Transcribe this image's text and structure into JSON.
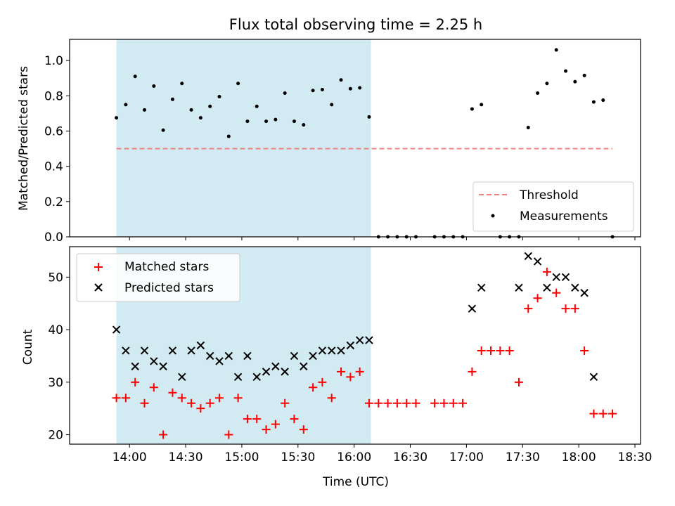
{
  "chart_data": {
    "title": "Flux total observing time = 2.25 h",
    "xlabel": "Time (UTC)",
    "xticks": [
      "14:00",
      "14:30",
      "15:00",
      "15:30",
      "16:00",
      "16:30",
      "17:00",
      "17:30",
      "18:00",
      "18:30"
    ],
    "shaded_span": {
      "start": "13:53",
      "end": "16:09",
      "color": "#add8e6"
    },
    "panels": [
      {
        "type": "scatter",
        "ylabel": "Matched/Predicted stars",
        "ylim": [
          0,
          1.12
        ],
        "yticks": [
          "0.0",
          "0.2",
          "0.4",
          "0.6",
          "0.8",
          "1.0"
        ],
        "threshold": {
          "name": "Threshold",
          "value": 0.5,
          "color": "#f08080"
        },
        "series": [
          {
            "name": "Measurements",
            "color": "#000000",
            "x": [
              "13:53",
              "13:58",
              "14:03",
              "14:08",
              "14:13",
              "14:18",
              "14:23",
              "14:28",
              "14:33",
              "14:38",
              "14:43",
              "14:48",
              "14:53",
              "14:58",
              "15:03",
              "15:08",
              "15:13",
              "15:18",
              "15:23",
              "15:28",
              "15:33",
              "15:38",
              "15:43",
              "15:48",
              "15:53",
              "15:58",
              "16:03",
              "16:08",
              "16:13",
              "16:18",
              "16:23",
              "16:28",
              "16:33",
              "16:43",
              "16:48",
              "16:53",
              "16:58",
              "17:03",
              "17:08",
              "17:18",
              "17:23",
              "17:28",
              "17:33",
              "17:38",
              "17:43",
              "17:48",
              "17:53",
              "17:58",
              "18:03",
              "18:08",
              "18:13",
              "18:18"
            ],
            "y": [
              0.675,
              0.75,
              0.91,
              0.72,
              0.855,
              0.605,
              0.78,
              0.87,
              0.72,
              0.675,
              0.74,
              0.795,
              0.57,
              0.87,
              0.655,
              0.74,
              0.655,
              0.665,
              0.815,
              0.655,
              0.635,
              0.83,
              0.835,
              0.75,
              0.89,
              0.84,
              0.845,
              0.68,
              0,
              0,
              0,
              0,
              0,
              0,
              0,
              0,
              0,
              0.725,
              0.75,
              0,
              0,
              0,
              0.62,
              0.815,
              0.87,
              1.06,
              0.94,
              0.88,
              0.915,
              0.765,
              0.775,
              0
            ]
          }
        ]
      },
      {
        "type": "scatter",
        "ylabel": "Count",
        "ylim": [
          18.2,
          55.8
        ],
        "yticks": [
          "20",
          "30",
          "40",
          "50"
        ],
        "series": [
          {
            "name": "Matched stars",
            "color": "#ff0000",
            "x": [
              "13:53",
              "13:58",
              "14:03",
              "14:08",
              "14:13",
              "14:18",
              "14:23",
              "14:28",
              "14:33",
              "14:38",
              "14:43",
              "14:48",
              "14:53",
              "14:58",
              "15:03",
              "15:08",
              "15:13",
              "15:18",
              "15:23",
              "15:28",
              "15:33",
              "15:38",
              "15:43",
              "15:48",
              "15:53",
              "15:58",
              "16:03",
              "16:08",
              "16:13",
              "16:18",
              "16:23",
              "16:28",
              "16:33",
              "16:43",
              "16:48",
              "16:53",
              "16:58",
              "17:03",
              "17:08",
              "17:13",
              "17:18",
              "17:23",
              "17:28",
              "17:33",
              "17:38",
              "17:43",
              "17:48",
              "17:53",
              "17:58",
              "18:03",
              "18:08",
              "18:13",
              "18:18"
            ],
            "y": [
              27,
              27,
              30,
              26,
              29,
              20,
              28,
              27,
              26,
              25,
              26,
              27,
              20,
              27,
              23,
              23,
              21,
              22,
              26,
              23,
              21,
              29,
              30,
              27,
              32,
              31,
              32,
              26,
              26,
              26,
              26,
              26,
              26,
              26,
              26,
              26,
              26,
              32,
              36,
              36,
              36,
              36,
              30,
              44,
              46,
              51,
              47,
              44,
              44,
              36,
              24,
              24,
              24
            ]
          },
          {
            "name": "Predicted stars",
            "color": "#000000",
            "x": [
              "13:53",
              "13:58",
              "14:03",
              "14:08",
              "14:13",
              "14:18",
              "14:23",
              "14:28",
              "14:33",
              "14:38",
              "14:43",
              "14:48",
              "14:53",
              "14:58",
              "15:03",
              "15:08",
              "15:13",
              "15:18",
              "15:23",
              "15:28",
              "15:33",
              "15:38",
              "15:43",
              "15:48",
              "15:53",
              "15:58",
              "16:03",
              "16:08",
              "17:03",
              "17:08",
              "17:28",
              "17:33",
              "17:38",
              "17:43",
              "17:48",
              "17:53",
              "17:58",
              "18:03",
              "18:08"
            ],
            "y": [
              40,
              36,
              33,
              36,
              34,
              33,
              36,
              31,
              36,
              37,
              35,
              34,
              35,
              31,
              35,
              31,
              32,
              33,
              32,
              35,
              33,
              35,
              36,
              36,
              36,
              37,
              38,
              38,
              44,
              48,
              48,
              54,
              53,
              48,
              50,
              50,
              48,
              47,
              31
            ]
          }
        ]
      }
    ]
  }
}
